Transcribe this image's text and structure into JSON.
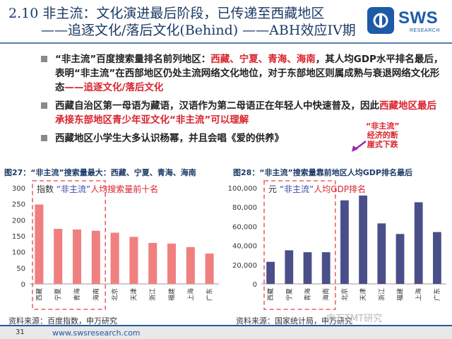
{
  "header": {
    "title_line1": "2.10 非主流：文化演进最后阶段，已传递至西藏地区",
    "title_line2": "——追逐文化/落后文化(Behind) ——ABH效应IV期",
    "logo_text": "SWS",
    "logo_sub": "RESEARCH"
  },
  "bullets": [
    {
      "parts": [
        {
          "text": "“非主流”百度搜索量排名前列地区：",
          "red": false
        },
        {
          "text": "西藏、宁夏、青海、海南",
          "red": true
        },
        {
          "text": "，其人均GDP水平排名最后，表明“非主流”在西部地区仍处主流网络文化地位，对于东部地区则属成熟与衰退网络文化形态",
          "red": false
        },
        {
          "text": "——追逐文化/落后文化",
          "red": true
        }
      ]
    },
    {
      "parts": [
        {
          "text": "西藏自治区第一母语为藏语，汉语作为第二母语正在年轻人中快速普及，因此",
          "red": false
        },
        {
          "text": "西藏地区最后承接东部地区青少年亚文化“非主流”可以理解",
          "red": true
        }
      ]
    },
    {
      "parts": [
        {
          "text": "西藏地区小学生大多认识杨幂，并且会唱《爱的供养》",
          "red": false
        }
      ]
    }
  ],
  "annotation": {
    "line1": "“非主流”",
    "line2": "经济的断",
    "line3": "崖式下跌"
  },
  "figures": {
    "left_title": "图27：“非主流”搜索量最大：西藏、宁夏、青海、海南",
    "right_title": "图28：“非主流”搜索量靠前地区人均GDP排名最后",
    "left_source": "资料来源：百度指数，申万研究",
    "right_source": "资料来源：国家统计局，申万研究"
  },
  "chart_data": [
    {
      "type": "bar",
      "title": "指数 “非主流”人均搜索量前十名",
      "categories": [
        "西藏",
        "宁夏",
        "青海",
        "海南",
        "北京",
        "天津",
        "浙江",
        "福建",
        "上海",
        "广东"
      ],
      "values": [
        248,
        172,
        170,
        166,
        160,
        147,
        128,
        126,
        115,
        95
      ],
      "ylim": [
        0,
        300
      ],
      "yticks": [
        0,
        50,
        100,
        150,
        200,
        250,
        300
      ],
      "bar_color": "#f08080",
      "highlight_first_n": 4,
      "grid": false
    },
    {
      "type": "bar",
      "title": "元 “非主流”人均GDP排名",
      "categories": [
        "西藏",
        "宁夏",
        "青海",
        "海南",
        "北京",
        "天津",
        "浙江",
        "福建",
        "上海",
        "广东"
      ],
      "values": [
        23000,
        35000,
        33000,
        33000,
        87000,
        92000,
        63000,
        52000,
        85000,
        54000
      ],
      "ylim": [
        0,
        100000
      ],
      "yticks": [
        "0",
        "20,000",
        "40,000",
        "60,000",
        "80,000",
        "100,000"
      ],
      "bar_color": "#4a4f8a",
      "highlight_first_n": 4,
      "grid": false
    }
  ],
  "footer": {
    "page_number": "31",
    "url": "www.swsresearch.com",
    "watermark": "申万TMT研究"
  },
  "colors": {
    "title": "#1a3a66",
    "accent_red": "#d9232d",
    "brand_blue": "#1d5aa8"
  }
}
